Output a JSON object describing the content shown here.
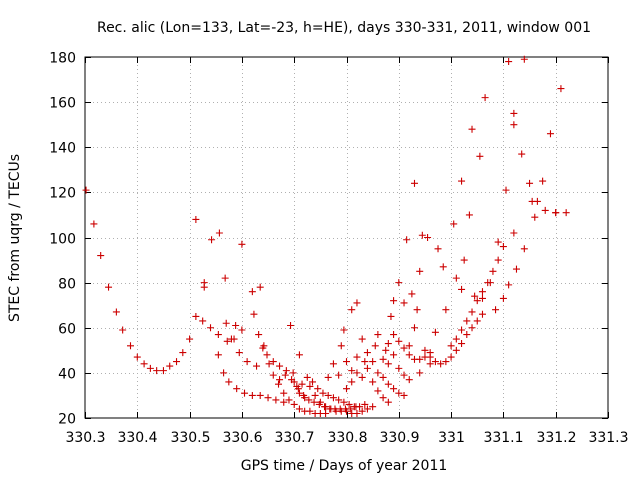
{
  "chart_data": {
    "type": "scatter",
    "title": "Rec. alic (Lon=133, Lat=-23, h=HE), days 330-331, 2011, window 001",
    "xlabel": "GPS time / Days of year 2011",
    "ylabel": "STEC from uqrg / TECUs",
    "xlim": [
      330.3,
      331.3
    ],
    "ylim": [
      20,
      180
    ],
    "xticks": [
      330.3,
      330.4,
      330.5,
      330.6,
      330.7,
      330.8,
      330.9,
      331.0,
      331.1,
      331.2,
      331.3
    ],
    "xtick_labels": [
      "330.3",
      "330.4",
      "330.5",
      "330.6",
      "330.7",
      "330.8",
      "330.9",
      "331",
      "331.1",
      "331.2",
      "331.3"
    ],
    "yticks": [
      20,
      40,
      60,
      80,
      100,
      120,
      140,
      160,
      180
    ],
    "ytick_labels": [
      "20",
      "40",
      "60",
      "80",
      "100",
      "120",
      "140",
      "160",
      "180"
    ],
    "grid": true,
    "marker": "+",
    "marker_color": "#cc0000",
    "points": [
      [
        330.302,
        121
      ],
      [
        330.317,
        106
      ],
      [
        330.33,
        92
      ],
      [
        330.345,
        78
      ],
      [
        330.36,
        67
      ],
      [
        330.372,
        59
      ],
      [
        330.387,
        52
      ],
      [
        330.4,
        47
      ],
      [
        330.413,
        44
      ],
      [
        330.425,
        42
      ],
      [
        330.437,
        41
      ],
      [
        330.45,
        41
      ],
      [
        330.462,
        43
      ],
      [
        330.475,
        45
      ],
      [
        330.487,
        49
      ],
      [
        330.5,
        55
      ],
      [
        330.512,
        108
      ],
      [
        330.528,
        80
      ],
      [
        330.528,
        78
      ],
      [
        330.542,
        99
      ],
      [
        330.557,
        102
      ],
      [
        330.568,
        82
      ],
      [
        330.585,
        55
      ],
      [
        330.6,
        97
      ],
      [
        330.512,
        65
      ],
      [
        330.525,
        63
      ],
      [
        330.54,
        60
      ],
      [
        330.555,
        57
      ],
      [
        330.572,
        54
      ],
      [
        330.588,
        61
      ],
      [
        330.6,
        59
      ],
      [
        330.555,
        48
      ],
      [
        330.565,
        40
      ],
      [
        330.575,
        36
      ],
      [
        330.59,
        33
      ],
      [
        330.605,
        31
      ],
      [
        330.62,
        30
      ],
      [
        330.635,
        30
      ],
      [
        330.65,
        29
      ],
      [
        330.665,
        28
      ],
      [
        330.68,
        27
      ],
      [
        330.57,
        62
      ],
      [
        330.58,
        55
      ],
      [
        330.595,
        49
      ],
      [
        330.61,
        45
      ],
      [
        330.62,
        76
      ],
      [
        330.628,
        43
      ],
      [
        330.635,
        78
      ],
      [
        330.64,
        51
      ],
      [
        330.648,
        48
      ],
      [
        330.66,
        45
      ],
      [
        330.672,
        43
      ],
      [
        330.685,
        41
      ],
      [
        330.698,
        40
      ],
      [
        330.71,
        48
      ],
      [
        330.623,
        66
      ],
      [
        330.632,
        57
      ],
      [
        330.642,
        52
      ],
      [
        330.652,
        44
      ],
      [
        330.66,
        39
      ],
      [
        330.67,
        35
      ],
      [
        330.68,
        31
      ],
      [
        330.69,
        28
      ],
      [
        330.7,
        26
      ],
      [
        330.71,
        24
      ],
      [
        330.72,
        23
      ],
      [
        330.73,
        23
      ],
      [
        330.74,
        22
      ],
      [
        330.75,
        22
      ],
      [
        330.76,
        22
      ],
      [
        330.672,
        37
      ],
      [
        330.683,
        39
      ],
      [
        330.693,
        61
      ],
      [
        330.7,
        36
      ],
      [
        330.708,
        33
      ],
      [
        330.718,
        30
      ],
      [
        330.728,
        28
      ],
      [
        330.738,
        27
      ],
      [
        330.748,
        26
      ],
      [
        330.758,
        25
      ],
      [
        330.768,
        24
      ],
      [
        330.778,
        24
      ],
      [
        330.788,
        24
      ],
      [
        330.798,
        24
      ],
      [
        330.808,
        24
      ],
      [
        330.818,
        25
      ],
      [
        330.695,
        37
      ],
      [
        330.705,
        34
      ],
      [
        330.715,
        35
      ],
      [
        330.725,
        38
      ],
      [
        330.735,
        36
      ],
      [
        330.745,
        33
      ],
      [
        330.755,
        31
      ],
      [
        330.765,
        30
      ],
      [
        330.775,
        29
      ],
      [
        330.785,
        28
      ],
      [
        330.795,
        27
      ],
      [
        330.805,
        26
      ],
      [
        330.815,
        25
      ],
      [
        330.825,
        25
      ],
      [
        330.835,
        26
      ],
      [
        330.71,
        31
      ],
      [
        330.72,
        29
      ],
      [
        330.73,
        34
      ],
      [
        330.74,
        30
      ],
      [
        330.75,
        27
      ],
      [
        330.76,
        25
      ],
      [
        330.77,
        24
      ],
      [
        330.78,
        23
      ],
      [
        330.79,
        23
      ],
      [
        330.8,
        23
      ],
      [
        330.81,
        22
      ],
      [
        330.82,
        22
      ],
      [
        330.83,
        23
      ],
      [
        330.84,
        24
      ],
      [
        330.85,
        25
      ],
      [
        330.765,
        38
      ],
      [
        330.775,
        44
      ],
      [
        330.785,
        39
      ],
      [
        330.79,
        52
      ],
      [
        330.795,
        59
      ],
      [
        330.8,
        33
      ],
      [
        330.81,
        36
      ],
      [
        330.81,
        68
      ],
      [
        330.82,
        71
      ],
      [
        330.82,
        40
      ],
      [
        330.83,
        38
      ],
      [
        330.835,
        45
      ],
      [
        330.84,
        42
      ],
      [
        330.85,
        36
      ],
      [
        330.86,
        32
      ],
      [
        330.87,
        29
      ],
      [
        330.88,
        27
      ],
      [
        330.8,
        45
      ],
      [
        330.81,
        41
      ],
      [
        330.82,
        47
      ],
      [
        330.83,
        55
      ],
      [
        330.84,
        49
      ],
      [
        330.85,
        45
      ],
      [
        330.855,
        52
      ],
      [
        330.86,
        40
      ],
      [
        330.87,
        38
      ],
      [
        330.875,
        50
      ],
      [
        330.88,
        35
      ],
      [
        330.89,
        33
      ],
      [
        330.9,
        31
      ],
      [
        330.91,
        30
      ],
      [
        330.86,
        57
      ],
      [
        330.87,
        46
      ],
      [
        330.88,
        44
      ],
      [
        330.885,
        65
      ],
      [
        330.89,
        48
      ],
      [
        330.89,
        72
      ],
      [
        330.9,
        80
      ],
      [
        330.9,
        42
      ],
      [
        330.91,
        71
      ],
      [
        330.91,
        39
      ],
      [
        330.915,
        99
      ],
      [
        330.92,
        37
      ],
      [
        330.925,
        75
      ],
      [
        330.93,
        124
      ],
      [
        330.935,
        68
      ],
      [
        330.94,
        40
      ],
      [
        330.945,
        101
      ],
      [
        330.955,
        100
      ],
      [
        330.96,
        44
      ],
      [
        330.88,
        53
      ],
      [
        330.89,
        57
      ],
      [
        330.9,
        54
      ],
      [
        330.91,
        51
      ],
      [
        330.92,
        48
      ],
      [
        330.93,
        46
      ],
      [
        330.94,
        46
      ],
      [
        330.95,
        47
      ],
      [
        330.96,
        49
      ],
      [
        330.97,
        58
      ],
      [
        330.975,
        95
      ],
      [
        330.985,
        87
      ],
      [
        330.99,
        68
      ],
      [
        330.92,
        52
      ],
      [
        330.93,
        60
      ],
      [
        330.94,
        85
      ],
      [
        330.95,
        50
      ],
      [
        330.96,
        47
      ],
      [
        330.97,
        45
      ],
      [
        330.98,
        44
      ],
      [
        330.99,
        45
      ],
      [
        331.0,
        47
      ],
      [
        331.01,
        50
      ],
      [
        331.02,
        53
      ],
      [
        331.03,
        57
      ],
      [
        331.04,
        60
      ],
      [
        331.05,
        63
      ],
      [
        331.06,
        66
      ],
      [
        331.005,
        106
      ],
      [
        331.01,
        82
      ],
      [
        331.02,
        125
      ],
      [
        331.02,
        77
      ],
      [
        331.025,
        90
      ],
      [
        331.035,
        110
      ],
      [
        331.04,
        148
      ],
      [
        331.045,
        74
      ],
      [
        331.055,
        136
      ],
      [
        331.06,
        73
      ],
      [
        331.065,
        162
      ],
      [
        331.075,
        80
      ],
      [
        331.085,
        68
      ],
      [
        331.09,
        98
      ],
      [
        331.1,
        96
      ],
      [
        331.105,
        121
      ],
      [
        331.11,
        178
      ],
      [
        331.12,
        155
      ],
      [
        331.12,
        150
      ],
      [
        331.12,
        102
      ],
      [
        331.135,
        137
      ],
      [
        331.14,
        179
      ],
      [
        331.15,
        124
      ],
      [
        331.16,
        109
      ],
      [
        331.165,
        116
      ],
      [
        331.175,
        125
      ],
      [
        331.18,
        112
      ],
      [
        331.19,
        146
      ],
      [
        331.2,
        111
      ],
      [
        331.21,
        166
      ],
      [
        331.22,
        111
      ],
      [
        331.0,
        52
      ],
      [
        331.01,
        55
      ],
      [
        331.02,
        59
      ],
      [
        331.03,
        63
      ],
      [
        331.04,
        67
      ],
      [
        331.05,
        72
      ],
      [
        331.06,
        76
      ],
      [
        331.07,
        80
      ],
      [
        331.08,
        85
      ],
      [
        331.09,
        90
      ],
      [
        331.1,
        73
      ],
      [
        331.11,
        79
      ],
      [
        331.125,
        86
      ],
      [
        331.14,
        95
      ],
      [
        331.155,
        116
      ],
      [
        331.2,
        111
      ]
    ]
  }
}
